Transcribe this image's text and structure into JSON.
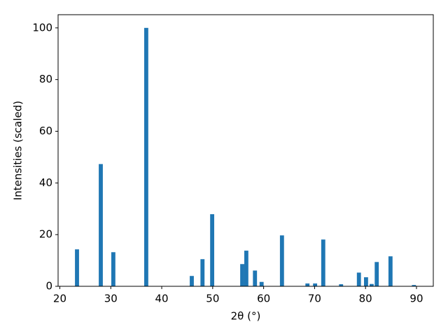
{
  "chart_data": {
    "type": "bar",
    "xlabel": "2θ (°)",
    "ylabel": "Intensities (scaled)",
    "x": [
      23.37,
      28.04,
      30.5,
      36.96,
      45.9,
      48.0,
      49.9,
      55.8,
      56.6,
      58.3,
      59.6,
      63.6,
      68.6,
      70.1,
      71.7,
      75.2,
      78.7,
      80.1,
      81.2,
      82.2,
      84.9,
      89.5
    ],
    "values": [
      14.3,
      47.3,
      13.2,
      100,
      4.0,
      10.5,
      27.9,
      8.6,
      13.8,
      6.1,
      1.7,
      19.7,
      1.1,
      1.1,
      18.1,
      0.8,
      5.3,
      3.5,
      0.9,
      9.4,
      11.6,
      0.5
    ],
    "color": "#1f77b4",
    "xlim": [
      19.66,
      93.3
    ],
    "xticks": [
      20,
      30,
      40,
      50,
      60,
      70,
      80,
      90
    ],
    "ylim": [
      0,
      105.1
    ],
    "yticks": [
      0,
      20,
      40,
      60,
      80,
      100
    ],
    "grid": false
  }
}
